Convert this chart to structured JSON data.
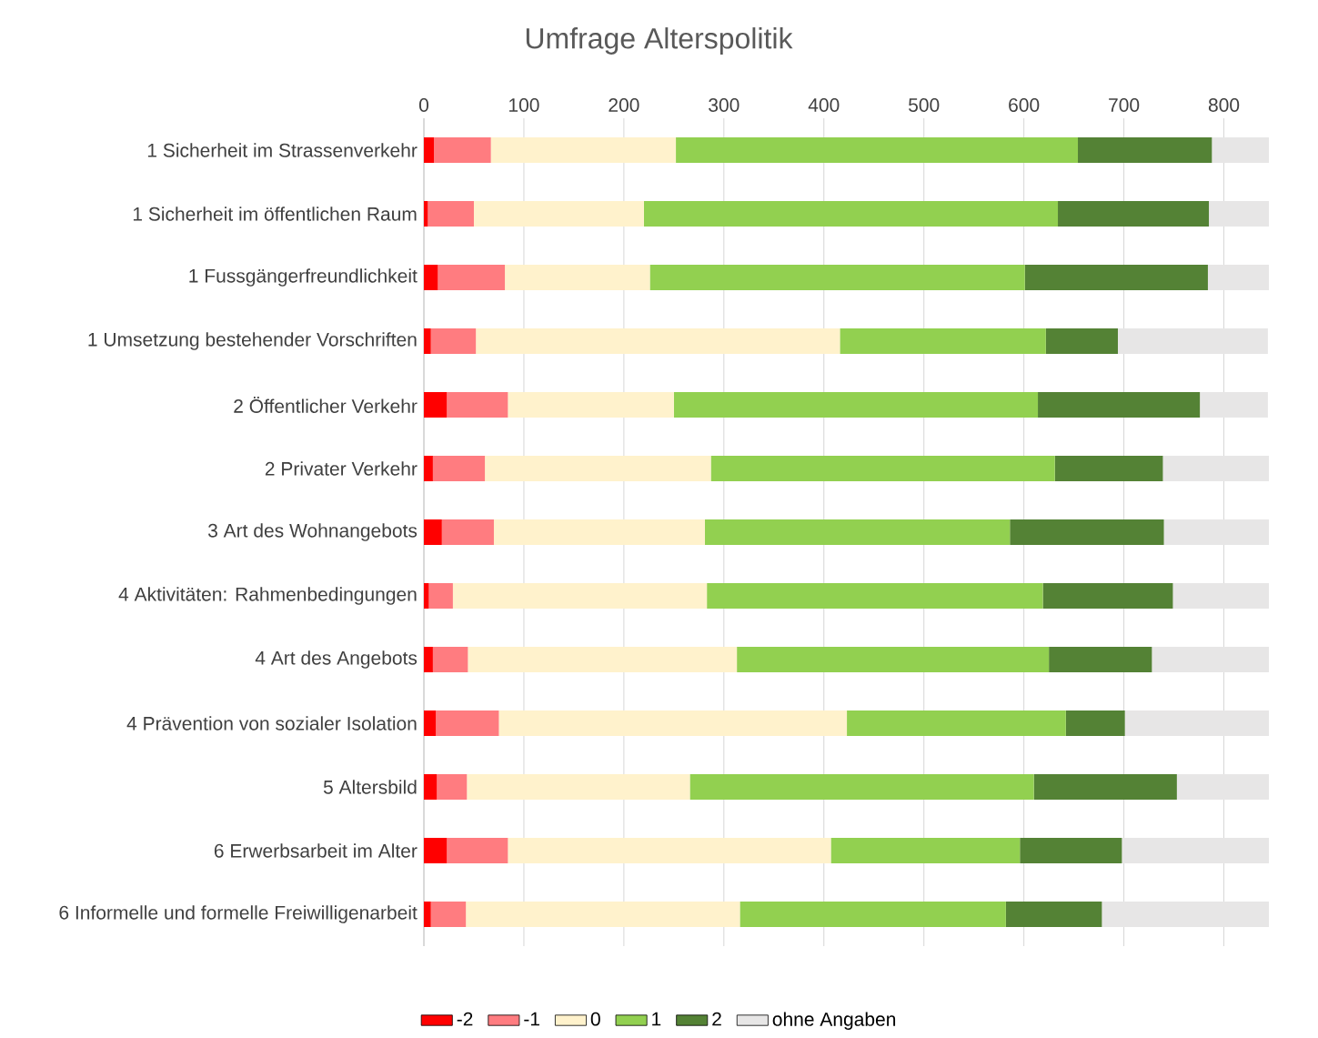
{
  "chart_data": {
    "type": "bar",
    "title": "Umfrage Alterspolitik",
    "orientation": "horizontal",
    "stacked": true,
    "grid": "x",
    "legend": "bottom",
    "categories": [
      "1 Sicherheit im Strassenverkehr",
      "1 Sicherheit im öffentlichen Raum",
      "1 Fussgängerfreundlichkeit",
      "1 Umsetzung bestehender Vorschriften",
      "2 Öffentlicher Verkehr",
      "2 Privater Verkehr",
      "3 Art des Wohnangebots",
      "4 Aktivitäten: Rahmenbedingungen",
      "4 Art des Angebots",
      "4 Prävention von sozialer Isolation",
      "5 Altersbild",
      "6 Erwerbsarbeit im Alter",
      "6 Informelle und formelle Freiwilligenarbeit"
    ],
    "xlim": [
      0,
      845
    ],
    "xticks": [
      0,
      100,
      200,
      300,
      400,
      500,
      600,
      700,
      800
    ],
    "series": [
      {
        "name": "-2",
        "color": "#ff0000",
        "values": [
          10,
          4,
          14,
          7,
          23,
          9,
          18,
          5,
          9,
          12,
          13,
          23,
          7
        ]
      },
      {
        "name": "-1",
        "color": "#ff7c80",
        "values": [
          57,
          46,
          67,
          45,
          61,
          52,
          52,
          24,
          35,
          63,
          30,
          61,
          35
        ]
      },
      {
        "name": "0",
        "color": "#fff2cc",
        "values": [
          185,
          170,
          145,
          364,
          166,
          226,
          211,
          254,
          269,
          348,
          223,
          323,
          274
        ]
      },
      {
        "name": "1",
        "color": "#92d050",
        "values": [
          402,
          414,
          375,
          206,
          364,
          344,
          305,
          336,
          312,
          219,
          344,
          189,
          266
        ]
      },
      {
        "name": "2",
        "color": "#548235",
        "values": [
          134,
          151,
          183,
          72,
          162,
          108,
          154,
          130,
          103,
          59,
          143,
          102,
          96
        ]
      },
      {
        "name": "ohne Angaben",
        "color": "#e7e6e6",
        "values": [
          57,
          60,
          61,
          150,
          68,
          106,
          105,
          96,
          117,
          144,
          92,
          147,
          167
        ]
      }
    ]
  }
}
